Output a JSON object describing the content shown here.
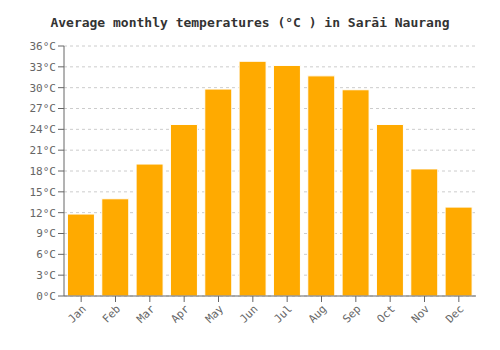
{
  "chart_data": {
    "type": "bar",
    "title": "Average monthly temperatures (°C ) in Sarāi Naurang",
    "categories": [
      "Jan",
      "Feb",
      "Mar",
      "Apr",
      "May",
      "Jun",
      "Jul",
      "Aug",
      "Sep",
      "Oct",
      "Nov",
      "Dec"
    ],
    "values": [
      11.8,
      14.0,
      19.0,
      24.7,
      29.8,
      33.8,
      33.2,
      31.7,
      29.7,
      24.7,
      18.3,
      12.8
    ],
    "color": "#FFAA00",
    "ylim": [
      0,
      36
    ],
    "yticks": [
      {
        "value": 0,
        "label": "0°C"
      },
      {
        "value": 3,
        "label": "3°C"
      },
      {
        "value": 6,
        "label": "6°C"
      },
      {
        "value": 9,
        "label": "9°C"
      },
      {
        "value": 12,
        "label": "12°C"
      },
      {
        "value": 15,
        "label": "15°C"
      },
      {
        "value": 18,
        "label": "18°C"
      },
      {
        "value": 21,
        "label": "21°C"
      },
      {
        "value": 24,
        "label": "24°C"
      },
      {
        "value": 27,
        "label": "27°C"
      },
      {
        "value": 30,
        "label": "30°C"
      },
      {
        "value": 33,
        "label": "33°C"
      },
      {
        "value": 36,
        "label": "36°C"
      }
    ],
    "grid": true
  }
}
